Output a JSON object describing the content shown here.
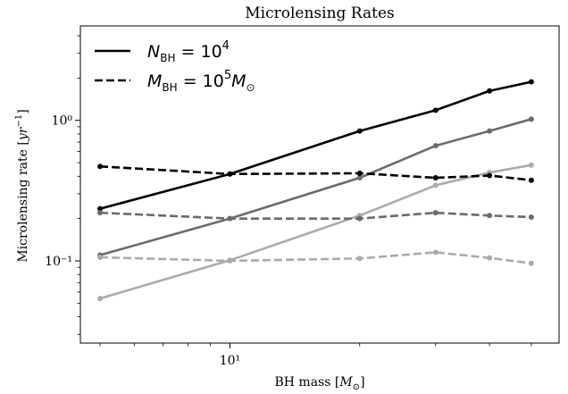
{
  "chart_data": {
    "type": "line",
    "title": "Microlensing Rates",
    "xlabel": "BH mass [M⊙]",
    "ylabel": "Microlensing rate [yr⁻¹]",
    "xscale": "log",
    "yscale": "log",
    "xlim": [
      4.5,
      58
    ],
    "ylim": [
      0.026,
      4.7
    ],
    "x_ticks": [
      {
        "value": 10,
        "label": "10¹"
      }
    ],
    "y_ticks": [
      {
        "value": 0.1,
        "label": "10⁻¹"
      },
      {
        "value": 1,
        "label": "10⁰"
      }
    ],
    "legend": {
      "placement": "top-left",
      "entries": [
        {
          "style": "solid",
          "label": "N_BH = 10^4"
        },
        {
          "style": "dashed",
          "label": "M_BH = 10^5 M⊙"
        }
      ]
    },
    "series": [
      {
        "style": "solid",
        "color": "#000000",
        "x": [
          5,
          10,
          20,
          30,
          40,
          50
        ],
        "y": [
          0.235,
          0.415,
          0.84,
          1.18,
          1.62,
          1.88
        ]
      },
      {
        "style": "solid",
        "color": "#6b6b6b",
        "x": [
          5,
          10,
          20,
          30,
          40,
          50
        ],
        "y": [
          0.11,
          0.2,
          0.39,
          0.66,
          0.84,
          1.02
        ]
      },
      {
        "style": "solid",
        "color": "#ababab",
        "x": [
          5,
          10,
          20,
          30,
          40,
          50
        ],
        "y": [
          0.054,
          0.101,
          0.21,
          0.345,
          0.425,
          0.48
        ]
      },
      {
        "style": "dashed",
        "color": "#000000",
        "x": [
          5,
          10,
          20,
          30,
          40,
          50
        ],
        "y": [
          0.47,
          0.415,
          0.42,
          0.39,
          0.405,
          0.375
        ]
      },
      {
        "style": "dashed",
        "color": "#6b6b6b",
        "x": [
          5,
          10,
          20,
          30,
          40,
          50
        ],
        "y": [
          0.22,
          0.2,
          0.2,
          0.22,
          0.21,
          0.205
        ]
      },
      {
        "style": "dashed",
        "color": "#ababab",
        "x": [
          5,
          10,
          20,
          30,
          40,
          50
        ],
        "y": [
          0.106,
          0.1,
          0.104,
          0.115,
          0.105,
          0.096
        ]
      }
    ]
  }
}
